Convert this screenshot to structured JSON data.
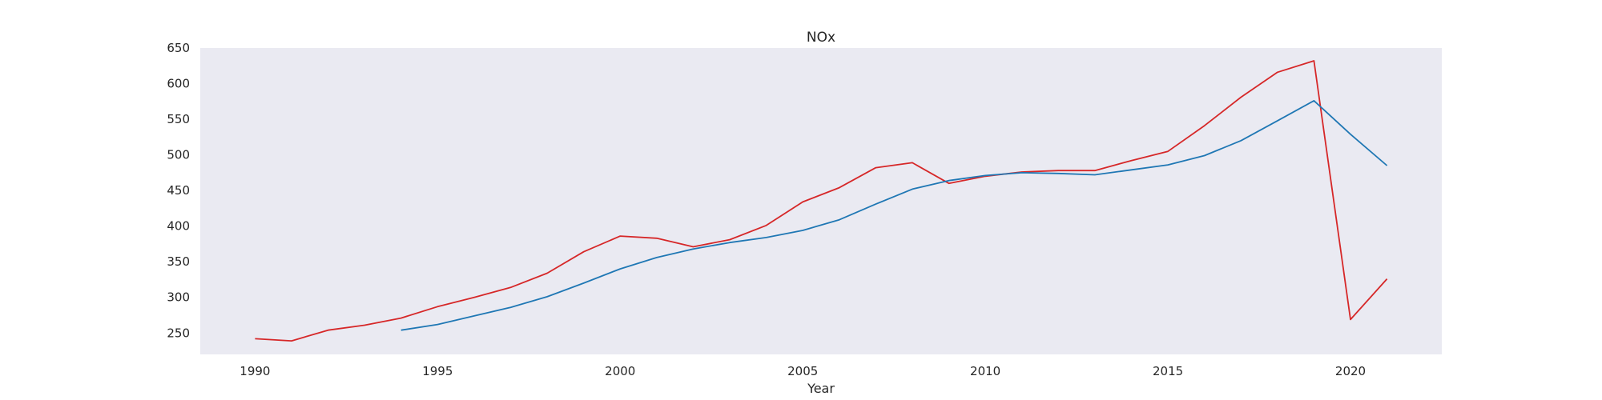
{
  "chart_data": {
    "type": "line",
    "title": "NOx",
    "xlabel": "Year",
    "ylabel": "",
    "xlim": [
      1988.5,
      2022.5
    ],
    "ylim": [
      220,
      650
    ],
    "xticks": [
      1990,
      1995,
      2000,
      2005,
      2010,
      2015,
      2020
    ],
    "yticks": [
      250,
      300,
      350,
      400,
      450,
      500,
      550,
      600,
      650
    ],
    "grid": false,
    "legend": false,
    "plot_background": "#eaeaf2",
    "series": [
      {
        "color": "#d62728",
        "x": [
          1990,
          1991,
          1992,
          1993,
          1994,
          1995,
          1996,
          1997,
          1998,
          1999,
          2000,
          2001,
          2002,
          2003,
          2004,
          2005,
          2006,
          2007,
          2008,
          2009,
          2010,
          2011,
          2012,
          2013,
          2014,
          2015,
          2016,
          2017,
          2018,
          2019,
          2020,
          2021
        ],
        "values": [
          242,
          239,
          254,
          261,
          271,
          287,
          300,
          314,
          334,
          364,
          386,
          383,
          371,
          381,
          401,
          434,
          454,
          482,
          489,
          460,
          470,
          476,
          478,
          478,
          492,
          505,
          541,
          581,
          616,
          632,
          269,
          326
        ]
      },
      {
        "color": "#1f77b4",
        "x": [
          1994,
          1995,
          1996,
          1997,
          1998,
          1999,
          2000,
          2001,
          2002,
          2003,
          2004,
          2005,
          2006,
          2007,
          2008,
          2009,
          2010,
          2011,
          2012,
          2013,
          2014,
          2015,
          2016,
          2017,
          2018,
          2019,
          2020,
          2021
        ],
        "values": [
          254,
          262,
          274,
          286,
          301,
          320,
          340,
          356,
          368,
          377,
          384,
          394,
          409,
          431,
          452,
          464,
          471,
          475,
          474,
          472,
          479,
          486,
          499,
          520,
          548,
          576,
          529,
          485
        ]
      }
    ]
  }
}
